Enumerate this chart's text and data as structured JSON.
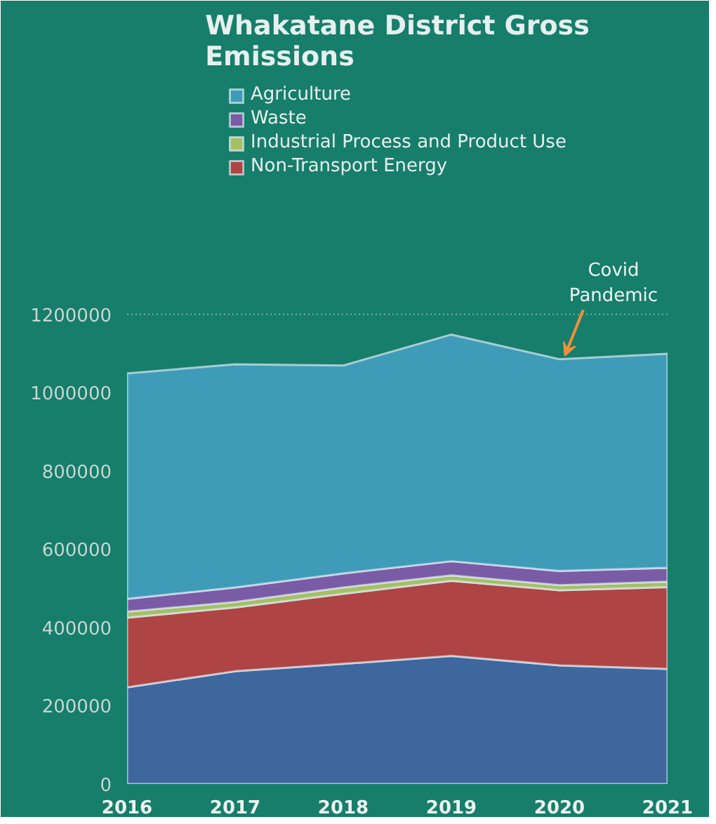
{
  "chart_data": {
    "type": "area",
    "stacked": true,
    "title": "Whakatane District Gross\nEmissions",
    "x": [
      2016,
      2017,
      2018,
      2019,
      2020,
      2021
    ],
    "series": [
      {
        "color": "#3e679e",
        "values": [
          247000,
          288000,
          307000,
          327000,
          303000,
          294000
        ]
      },
      {
        "name": "Non-Transport Energy",
        "color": "#ae4444",
        "values": [
          178000,
          163000,
          179000,
          192000,
          192000,
          209000
        ]
      },
      {
        "name": "Industrial Process and Product Use",
        "color": "#a3c063",
        "values": [
          15000,
          14000,
          16000,
          14000,
          13000,
          14000
        ]
      },
      {
        "name": "Waste",
        "color": "#7a5ba6",
        "values": [
          33000,
          37000,
          36000,
          36000,
          36000,
          35000
        ]
      },
      {
        "name": "Agriculture",
        "color": "#3f9cb8",
        "values": [
          576000,
          570000,
          531000,
          579000,
          541000,
          547000
        ]
      }
    ],
    "xlim": [
      2016,
      2021
    ],
    "xticks": [
      2016,
      2017,
      2018,
      2019,
      2020,
      2021
    ],
    "ylim": [
      0,
      1800000
    ],
    "yticks": [
      0,
      200000,
      400000,
      600000,
      800000,
      1000000,
      1200000
    ],
    "grid": false,
    "legend": "top",
    "ref_lines": [
      {
        "axis": "y",
        "value": 1200000,
        "color": "#6fb3a2",
        "line_style": "dotted"
      }
    ],
    "annotations": [
      {
        "text": "Covid\nPandemic",
        "x": 2020,
        "y": 1085000
      }
    ]
  }
}
